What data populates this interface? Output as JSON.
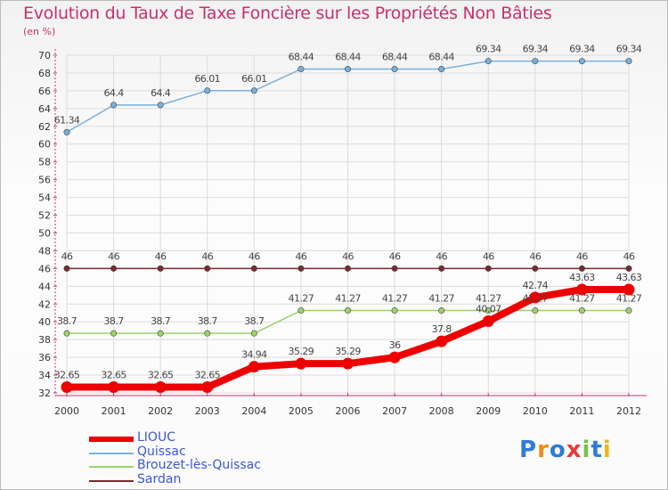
{
  "chart_data": {
    "type": "line",
    "title": "Evolution du Taux de Taxe Foncière sur les Propriétés Non Bâties",
    "ylabel": "(en %)",
    "xlabel": "",
    "ylim": [
      32,
      70
    ],
    "yticks": [
      32,
      34,
      36,
      38,
      40,
      42,
      44,
      46,
      48,
      50,
      52,
      54,
      56,
      58,
      60,
      62,
      64,
      66,
      68,
      70
    ],
    "x": [
      "2000",
      "2001",
      "2002",
      "2003",
      "2004",
      "2005",
      "2006",
      "2007",
      "2008",
      "2009",
      "2010",
      "2011",
      "2012"
    ],
    "grid": true,
    "legend_position": "bottom-left",
    "series": [
      {
        "name": "LIOUC",
        "color": "#ee0000",
        "values": [
          32.65,
          32.65,
          32.65,
          32.65,
          34.94,
          35.29,
          35.29,
          36,
          37.8,
          40.07,
          42.74,
          43.63,
          43.63
        ],
        "labels": [
          "32.65",
          "32.65",
          "32.65",
          "32.65",
          "34.94",
          "35.29",
          "35.29",
          "36",
          "37.8",
          "40.07",
          "42.74",
          "43.63",
          "43.63"
        ]
      },
      {
        "name": "Quissac",
        "color": "#7ab0dc",
        "values": [
          61.34,
          64.4,
          64.4,
          66.01,
          66.01,
          68.44,
          68.44,
          68.44,
          68.44,
          69.34,
          69.34,
          69.34,
          69.34
        ],
        "labels": [
          "61.34",
          "64.4",
          "64.4",
          "66.01",
          "66.01",
          "68.44",
          "68.44",
          "68.44",
          "68.44",
          "69.34",
          "69.34",
          "69.34",
          "69.34"
        ]
      },
      {
        "name": "Brouzet-lès-Quissac",
        "color": "#99d36a",
        "values": [
          38.7,
          38.7,
          38.7,
          38.7,
          38.7,
          41.27,
          41.27,
          41.27,
          41.27,
          41.27,
          41.27,
          41.27,
          41.27
        ],
        "labels": [
          "38.7",
          "38.7",
          "38.7",
          "38.7",
          "38.7",
          "41.27",
          "41.27",
          "41.27",
          "41.27",
          "41.27",
          "41.27",
          "41.27",
          "41.27"
        ]
      },
      {
        "name": "Sardan",
        "color": "#7a2a2a",
        "values": [
          46,
          46,
          46,
          46,
          46,
          46,
          46,
          46,
          46,
          46,
          46,
          46,
          46
        ],
        "labels": [
          "46",
          "46",
          "46",
          "46",
          "46",
          "46",
          "46",
          "46",
          "46",
          "46",
          "46",
          "46",
          "46"
        ]
      }
    ]
  },
  "logo": {
    "text": "Proxiti"
  }
}
